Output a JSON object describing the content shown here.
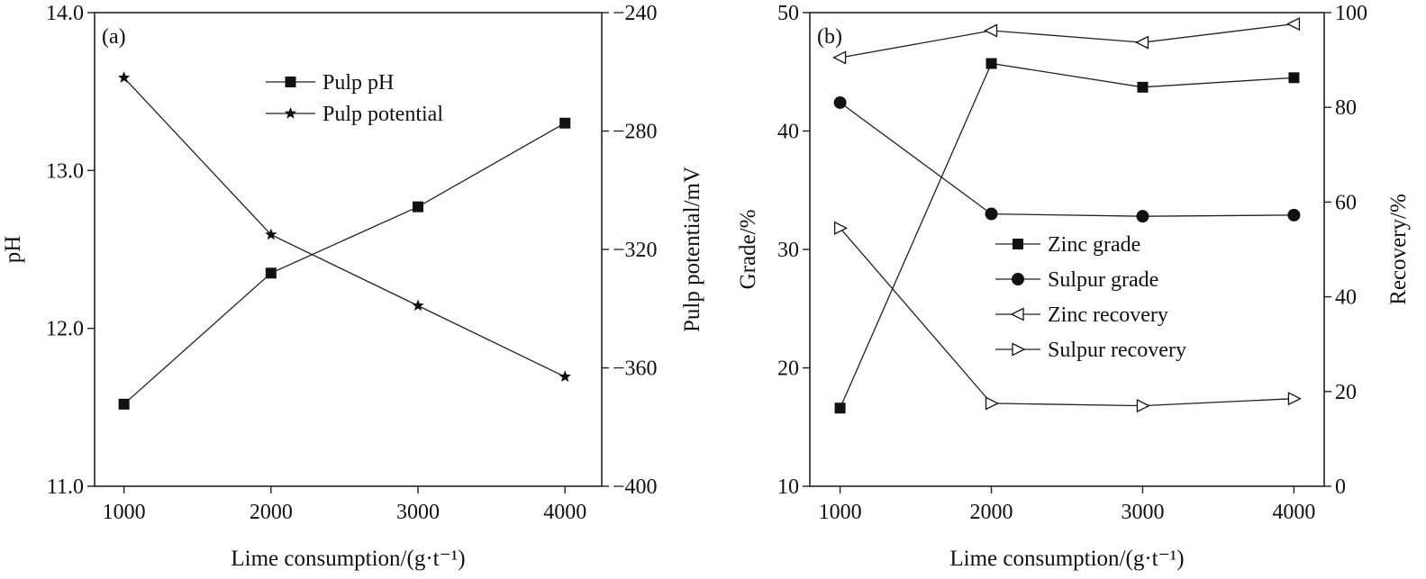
{
  "chart_data": [
    {
      "type": "line",
      "panel_label": "(a)",
      "xlabel": "Lime consumption/(g·t⁻¹)",
      "ylabel_left": "pH",
      "ylabel_right": "Pulp potential/mV",
      "xlim": [
        800,
        4250
      ],
      "ylim_left": [
        11.0,
        14.0
      ],
      "ylim_right": [
        -400,
        -240
      ],
      "x_ticks": [
        "1000",
        "2000",
        "3000",
        "4000"
      ],
      "y_left_ticks": [
        "11.0",
        "12.0",
        "13.0",
        "14.0"
      ],
      "y_right_ticks": [
        "−400",
        "−360",
        "−320",
        "−280",
        "−240"
      ],
      "x": [
        1000,
        2000,
        3000,
        4000
      ],
      "legend_position": "top-center",
      "grid": false,
      "series": [
        {
          "name": "Pulp pH",
          "axis": "left",
          "marker": "square",
          "values": [
            11.52,
            12.35,
            12.77,
            13.3
          ]
        },
        {
          "name": "Pulp potential",
          "axis": "right",
          "marker": "star",
          "values": [
            -262,
            -315,
            -339,
            -363
          ]
        }
      ]
    },
    {
      "type": "line",
      "panel_label": "(b)",
      "xlabel": "Lime consumption/(g·t⁻¹)",
      "ylabel_left": "Grade/%",
      "ylabel_right": "Recovery/%",
      "xlim": [
        800,
        4200
      ],
      "ylim_left": [
        10,
        50
      ],
      "ylim_right": [
        0,
        100
      ],
      "x_ticks": [
        "1000",
        "2000",
        "3000",
        "4000"
      ],
      "y_left_ticks": [
        "10",
        "20",
        "30",
        "40",
        "50"
      ],
      "y_right_ticks": [
        "0",
        "20",
        "40",
        "60",
        "80",
        "100"
      ],
      "x": [
        1000,
        2000,
        3000,
        4000
      ],
      "legend_position": "center",
      "grid": false,
      "series": [
        {
          "name": "Zinc grade",
          "axis": "left",
          "marker": "square",
          "values": [
            16.6,
            45.7,
            43.7,
            44.5
          ]
        },
        {
          "name": "Sulpur grade",
          "axis": "left",
          "marker": "circle",
          "values": [
            42.4,
            33.0,
            32.8,
            32.9
          ]
        },
        {
          "name": "Zinc recovery",
          "axis": "right",
          "marker": "triangle-left",
          "values": [
            90.5,
            96.2,
            93.7,
            97.6
          ]
        },
        {
          "name": "Sulpur recovery",
          "axis": "right",
          "marker": "triangle-right",
          "values": [
            54.5,
            17.5,
            17.0,
            18.5
          ]
        }
      ]
    }
  ]
}
